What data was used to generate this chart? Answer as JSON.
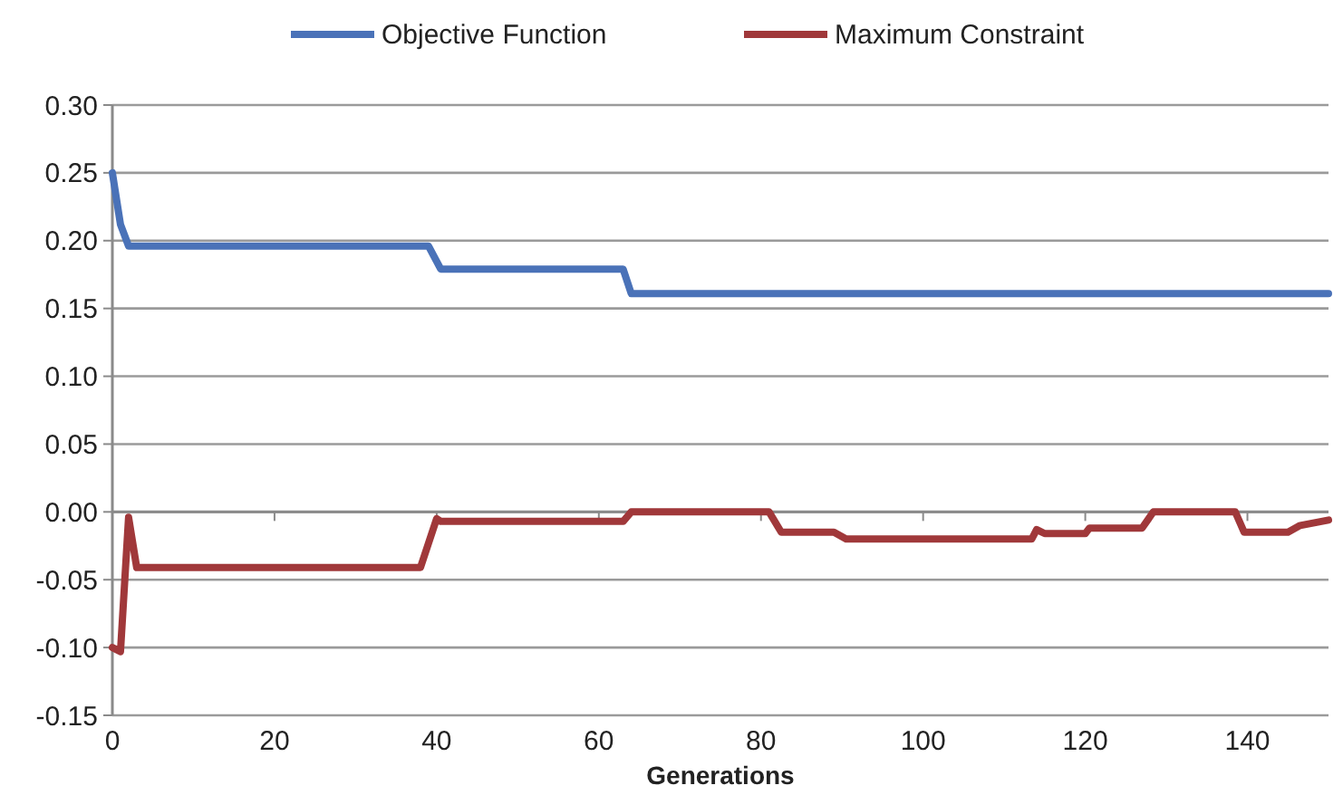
{
  "chart_data": {
    "type": "line",
    "xlabel": "Generations",
    "xlim": [
      0,
      150
    ],
    "xticks": [
      0,
      20,
      40,
      60,
      80,
      100,
      120,
      140
    ],
    "ylim": [
      -0.15,
      0.3
    ],
    "yticks": [
      {
        "value": -0.15,
        "label": "-0.15"
      },
      {
        "value": -0.1,
        "label": "-0.10"
      },
      {
        "value": -0.05,
        "label": "-0.05"
      },
      {
        "value": 0,
        "label": "0.00"
      },
      {
        "value": 0.05,
        "label": "0.05"
      },
      {
        "value": 0.1,
        "label": "0.10"
      },
      {
        "value": 0.15,
        "label": "0.15"
      },
      {
        "value": 0.2,
        "label": "0.20"
      },
      {
        "value": 0.25,
        "label": "0.25"
      },
      {
        "value": 0.3,
        "label": "0.30"
      }
    ],
    "grid": "y",
    "legend": "top",
    "line_style": "solid",
    "marker": "none",
    "series": [
      {
        "name": "Objective Function",
        "color": "#4a72b8",
        "x": [
          0,
          1,
          2,
          39,
          40.5,
          63,
          64,
          150
        ],
        "values": [
          0.25,
          0.212,
          0.196,
          0.196,
          0.179,
          0.179,
          0.161,
          0.161
        ]
      },
      {
        "name": "Maximum Constraint",
        "color": "#a0383a",
        "x": [
          0,
          1,
          2,
          3,
          38,
          40,
          40.5,
          63,
          64,
          81,
          82.5,
          89,
          90.5,
          113.4,
          114,
          115,
          120,
          120.5,
          127,
          128.4,
          138.5,
          139.6,
          145,
          146.5,
          150
        ],
        "values": [
          -0.1,
          -0.103,
          -0.004,
          -0.041,
          -0.041,
          -0.005,
          -0.007,
          -0.007,
          0,
          0,
          -0.015,
          -0.015,
          -0.02,
          -0.02,
          -0.013,
          -0.016,
          -0.016,
          -0.012,
          -0.012,
          0,
          0,
          -0.015,
          -0.015,
          -0.01,
          -0.006
        ]
      }
    ]
  }
}
